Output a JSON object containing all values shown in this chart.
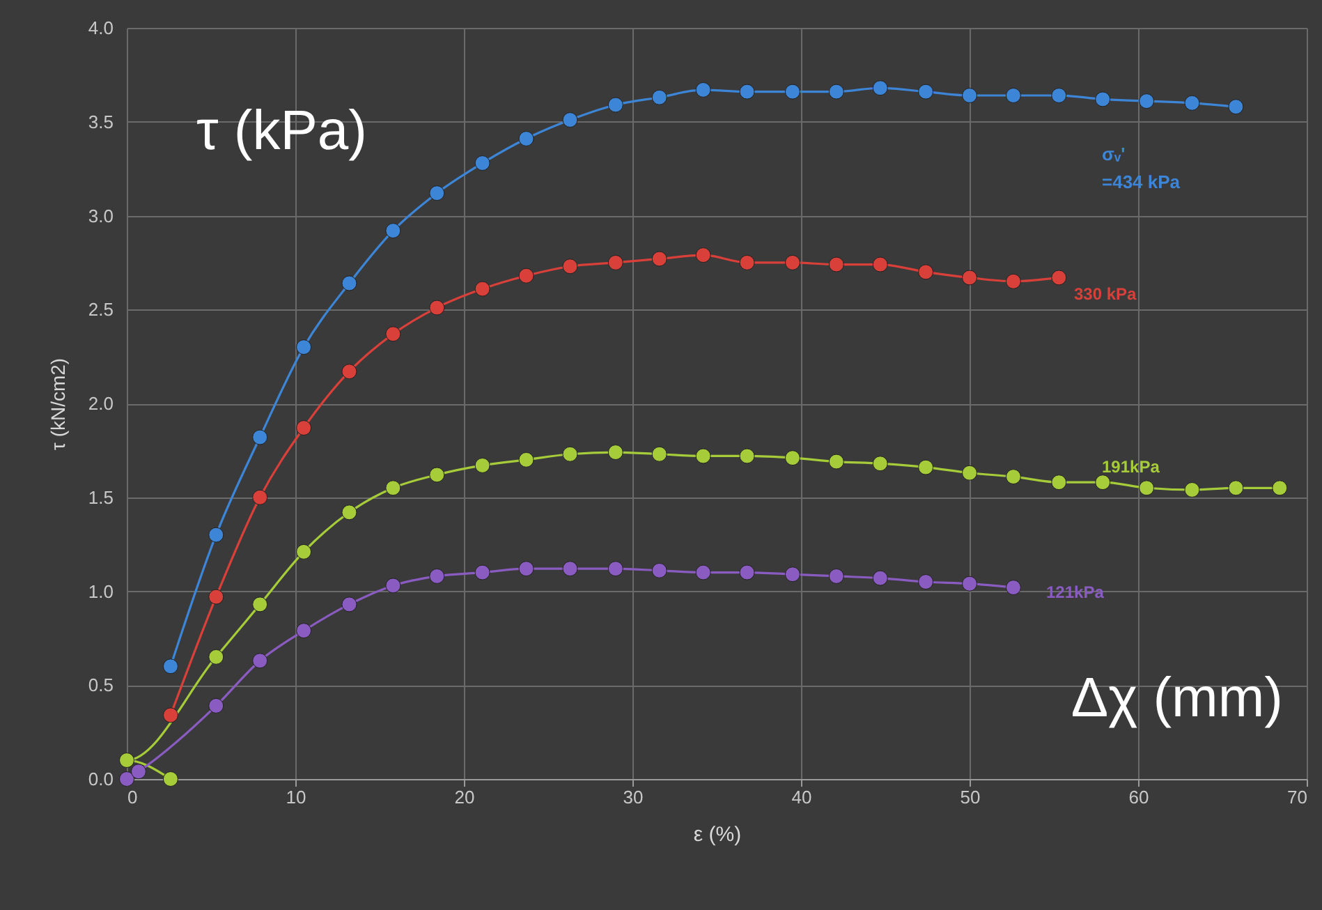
{
  "chart_data": {
    "type": "line",
    "xlabel": "ε (%)",
    "ylabel": "τ (kN/cm2)",
    "annotations": [
      "τ (kPa)",
      "Δχ (mm)"
    ],
    "xlim": [
      0,
      70
    ],
    "xticks": [
      0,
      10,
      20,
      30,
      40,
      50,
      60,
      70
    ],
    "ylim": [
      0,
      4
    ],
    "yticks": [
      {
        "value": 0,
        "label": "0.0"
      },
      {
        "value": 0.5,
        "label": "0.5"
      },
      {
        "value": 1,
        "label": "1.0"
      },
      {
        "value": 1.5,
        "label": "1.5"
      },
      {
        "value": 2,
        "label": "2.0"
      },
      {
        "value": 2.5,
        "label": "2.5"
      },
      {
        "value": 3,
        "label": "3.0"
      },
      {
        "value": 3.5,
        "label": "3.5"
      },
      {
        "value": 4,
        "label": "4.0"
      }
    ],
    "grid": true,
    "legend": false,
    "marker": "circle",
    "line_style": "solid",
    "series": [
      {
        "name": "σᵥ' =434 kPa",
        "color": "#3d85d6",
        "x": [
          2.6,
          5.3,
          7.9,
          10.5,
          13.2,
          15.8,
          18.4,
          21.1,
          23.7,
          26.3,
          29.0,
          31.6,
          34.2,
          36.8,
          39.5,
          42.1,
          44.7,
          47.4,
          50.0,
          52.6,
          55.3,
          57.9,
          60.5,
          63.2,
          65.8
        ],
        "values": [
          0.6,
          1.3,
          1.82,
          2.3,
          2.64,
          2.92,
          3.12,
          3.28,
          3.41,
          3.51,
          3.59,
          3.63,
          3.67,
          3.66,
          3.66,
          3.66,
          3.68,
          3.66,
          3.64,
          3.64,
          3.64,
          3.62,
          3.61,
          3.6,
          3.58
        ]
      },
      {
        "name": "330 kPa",
        "color": "#d9403a",
        "x": [
          2.6,
          5.3,
          7.9,
          10.5,
          13.2,
          15.8,
          18.4,
          21.1,
          23.7,
          26.3,
          29.0,
          31.6,
          34.2,
          36.8,
          39.5,
          42.1,
          44.7,
          47.4,
          50.0,
          52.6,
          55.3
        ],
        "values": [
          0.34,
          0.97,
          1.5,
          1.87,
          2.17,
          2.37,
          2.51,
          2.61,
          2.68,
          2.73,
          2.75,
          2.77,
          2.79,
          2.75,
          2.75,
          2.74,
          2.74,
          2.7,
          2.67,
          2.65,
          2.67
        ]
      },
      {
        "name": "191kPa",
        "color": "#a6cc3a",
        "x": [
          2.6,
          0,
          5.3,
          7.9,
          10.5,
          13.2,
          15.8,
          18.4,
          21.1,
          23.7,
          26.3,
          29.0,
          31.6,
          34.2,
          36.8,
          39.5,
          42.1,
          44.7,
          47.4,
          50.0,
          52.6,
          55.3,
          57.9,
          60.5,
          63.2,
          65.8,
          68.4
        ],
        "values": [
          0,
          0.1,
          0.65,
          0.93,
          1.21,
          1.42,
          1.55,
          1.62,
          1.67,
          1.7,
          1.73,
          1.74,
          1.73,
          1.72,
          1.72,
          1.71,
          1.69,
          1.68,
          1.66,
          1.63,
          1.61,
          1.58,
          1.58,
          1.55,
          1.54,
          1.55,
          1.55
        ]
      },
      {
        "name": "121kPa",
        "color": "#8a5cc2",
        "x": [
          0,
          0.7,
          5.3,
          7.9,
          10.5,
          13.2,
          15.8,
          18.4,
          21.1,
          23.7,
          26.3,
          29.0,
          31.6,
          34.2,
          36.8,
          39.5,
          42.1,
          44.7,
          47.4,
          50.0,
          52.6
        ],
        "values": [
          0,
          0.04,
          0.39,
          0.63,
          0.79,
          0.93,
          1.03,
          1.08,
          1.1,
          1.12,
          1.12,
          1.12,
          1.11,
          1.1,
          1.1,
          1.09,
          1.08,
          1.07,
          1.05,
          1.04,
          1.02
        ]
      }
    ]
  }
}
